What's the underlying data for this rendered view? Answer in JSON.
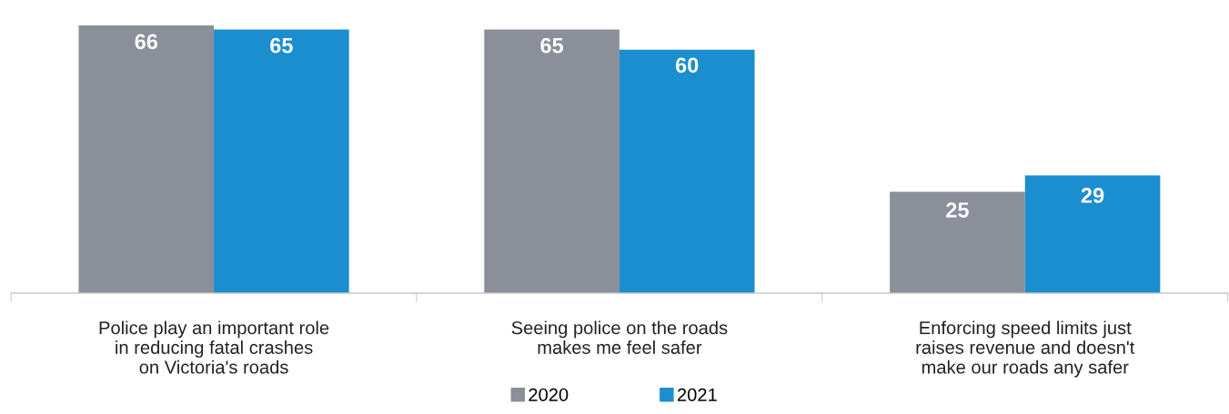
{
  "chart_data": {
    "type": "bar",
    "categories": [
      "Police play an important role\nin reducing fatal crashes\non Victoria's roads",
      "Seeing police on the roads\nmakes me feel safer",
      "Enforcing speed limits just\nraises revenue and doesn't\nmake our roads any safer"
    ],
    "series": [
      {
        "name": "2020",
        "color": "#8a8f9a",
        "values": [
          66,
          65,
          25
        ]
      },
      {
        "name": "2021",
        "color": "#1b8ed0",
        "values": [
          65,
          60,
          29
        ]
      }
    ],
    "data_labels": true,
    "legend": "bottom",
    "grid": false
  }
}
